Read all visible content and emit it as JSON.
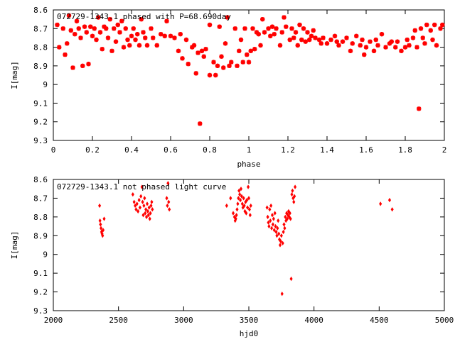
{
  "chart_data": [
    {
      "type": "scatter",
      "title": "072729-1343.1 phased with P=68.690day",
      "xlabel": "phase",
      "ylabel": "I[mag]",
      "xlim": [
        0,
        2
      ],
      "ylim": [
        9.3,
        8.6
      ],
      "y_inverted": true,
      "grid": false,
      "marker_color": "#ff0000",
      "marker": "star",
      "x_ticks": [
        {
          "v": 0,
          "label": "0"
        },
        {
          "v": 0.2,
          "label": "0.2"
        },
        {
          "v": 0.4,
          "label": "0.4"
        },
        {
          "v": 0.6,
          "label": "0.6"
        },
        {
          "v": 0.8,
          "label": "0.8"
        },
        {
          "v": 1,
          "label": "1"
        },
        {
          "v": 1.2,
          "label": "1.2"
        },
        {
          "v": 1.4,
          "label": "1.4"
        },
        {
          "v": 1.6,
          "label": "1.6"
        },
        {
          "v": 1.8,
          "label": "1.8"
        },
        {
          "v": 2,
          "label": "2"
        }
      ],
      "y_ticks": [
        {
          "v": 8.6,
          "label": "8.6"
        },
        {
          "v": 8.7,
          "label": "8.7"
        },
        {
          "v": 8.8,
          "label": "8.8"
        },
        {
          "v": 8.9,
          "label": "8.9"
        },
        {
          "v": 9.0,
          "label": "9"
        },
        {
          "v": 9.1,
          "label": "9.1"
        },
        {
          "v": 9.2,
          "label": "9.2"
        },
        {
          "v": 9.3,
          "label": "9.3"
        }
      ],
      "points": [
        [
          0.02,
          8.68
        ],
        [
          0.03,
          8.8
        ],
        [
          0.05,
          8.7
        ],
        [
          0.06,
          8.84
        ],
        [
          0.07,
          8.78
        ],
        [
          0.08,
          8.63
        ],
        [
          0.09,
          8.71
        ],
        [
          0.1,
          8.91
        ],
        [
          0.11,
          8.73
        ],
        [
          0.12,
          8.66
        ],
        [
          0.13,
          8.7
        ],
        [
          0.14,
          8.75
        ],
        [
          0.15,
          8.9
        ],
        [
          0.16,
          8.69
        ],
        [
          0.17,
          8.72
        ],
        [
          0.18,
          8.89
        ],
        [
          0.19,
          8.69
        ],
        [
          0.2,
          8.74
        ],
        [
          0.21,
          8.7
        ],
        [
          0.22,
          8.76
        ],
        [
          0.23,
          8.64
        ],
        [
          0.24,
          8.72
        ],
        [
          0.25,
          8.81
        ],
        [
          0.26,
          8.69
        ],
        [
          0.27,
          8.7
        ],
        [
          0.28,
          8.75
        ],
        [
          0.29,
          8.65
        ],
        [
          0.3,
          8.82
        ],
        [
          0.31,
          8.7
        ],
        [
          0.32,
          8.77
        ],
        [
          0.33,
          8.68
        ],
        [
          0.34,
          8.72
        ],
        [
          0.35,
          8.66
        ],
        [
          0.36,
          8.8
        ],
        [
          0.37,
          8.7
        ],
        [
          0.38,
          8.76
        ],
        [
          0.39,
          8.79
        ],
        [
          0.4,
          8.74
        ],
        [
          0.41,
          8.7
        ],
        [
          0.42,
          8.76
        ],
        [
          0.43,
          8.73
        ],
        [
          0.44,
          8.79
        ],
        [
          0.45,
          8.65
        ],
        [
          0.46,
          8.72
        ],
        [
          0.47,
          8.75
        ],
        [
          0.48,
          8.79
        ],
        [
          0.5,
          8.7
        ],
        [
          0.51,
          8.75
        ],
        [
          0.53,
          8.79
        ],
        [
          0.55,
          8.73
        ],
        [
          0.57,
          8.74
        ],
        [
          0.58,
          8.66
        ],
        [
          0.6,
          8.74
        ],
        [
          0.62,
          8.75
        ],
        [
          0.64,
          8.82
        ],
        [
          0.65,
          8.73
        ],
        [
          0.66,
          8.86
        ],
        [
          0.68,
          8.76
        ],
        [
          0.69,
          8.89
        ],
        [
          0.71,
          8.8
        ],
        [
          0.72,
          8.79
        ],
        [
          0.73,
          8.94
        ],
        [
          0.74,
          8.83
        ],
        [
          0.75,
          9.21
        ],
        [
          0.76,
          8.82
        ],
        [
          0.77,
          8.85
        ],
        [
          0.78,
          8.81
        ],
        [
          0.8,
          8.95
        ],
        [
          0.8,
          8.68
        ],
        [
          0.82,
          8.88
        ],
        [
          0.83,
          8.95
        ],
        [
          0.84,
          8.9
        ],
        [
          0.85,
          8.69
        ],
        [
          0.86,
          8.85
        ],
        [
          0.87,
          8.91
        ],
        [
          0.88,
          8.78
        ],
        [
          0.89,
          8.64
        ],
        [
          0.9,
          8.9
        ],
        [
          0.91,
          8.88
        ],
        [
          0.93,
          8.7
        ],
        [
          0.94,
          8.9
        ],
        [
          0.95,
          8.82
        ],
        [
          0.96,
          8.76
        ],
        [
          0.97,
          8.88
        ],
        [
          0.98,
          8.7
        ],
        [
          0.99,
          8.84
        ],
        [
          1.0,
          8.88
        ],
        [
          1.01,
          8.82
        ],
        [
          1.02,
          8.7
        ],
        [
          1.03,
          8.81
        ],
        [
          1.04,
          8.72
        ],
        [
          1.05,
          8.73
        ],
        [
          1.06,
          8.79
        ],
        [
          1.07,
          8.65
        ],
        [
          1.08,
          8.72
        ],
        [
          1.1,
          8.7
        ],
        [
          1.11,
          8.74
        ],
        [
          1.12,
          8.69
        ],
        [
          1.13,
          8.73
        ],
        [
          1.14,
          8.7
        ],
        [
          1.16,
          8.79
        ],
        [
          1.17,
          8.72
        ],
        [
          1.18,
          8.64
        ],
        [
          1.19,
          8.69
        ],
        [
          1.21,
          8.76
        ],
        [
          1.22,
          8.7
        ],
        [
          1.23,
          8.75
        ],
        [
          1.24,
          8.72
        ],
        [
          1.25,
          8.79
        ],
        [
          1.26,
          8.68
        ],
        [
          1.27,
          8.76
        ],
        [
          1.28,
          8.7
        ],
        [
          1.29,
          8.77
        ],
        [
          1.3,
          8.72
        ],
        [
          1.31,
          8.76
        ],
        [
          1.32,
          8.74
        ],
        [
          1.33,
          8.71
        ],
        [
          1.34,
          8.75
        ],
        [
          1.36,
          8.76
        ],
        [
          1.37,
          8.78
        ],
        [
          1.38,
          8.75
        ],
        [
          1.4,
          8.78
        ],
        [
          1.42,
          8.76
        ],
        [
          1.44,
          8.74
        ],
        [
          1.45,
          8.77
        ],
        [
          1.46,
          8.79
        ],
        [
          1.48,
          8.77
        ],
        [
          1.5,
          8.75
        ],
        [
          1.52,
          8.82
        ],
        [
          1.53,
          8.78
        ],
        [
          1.55,
          8.74
        ],
        [
          1.57,
          8.79
        ],
        [
          1.58,
          8.76
        ],
        [
          1.59,
          8.84
        ],
        [
          1.6,
          8.8
        ],
        [
          1.62,
          8.77
        ],
        [
          1.64,
          8.82
        ],
        [
          1.65,
          8.76
        ],
        [
          1.66,
          8.79
        ],
        [
          1.68,
          8.73
        ],
        [
          1.7,
          8.8
        ],
        [
          1.72,
          8.78
        ],
        [
          1.73,
          8.77
        ],
        [
          1.75,
          8.8
        ],
        [
          1.76,
          8.77
        ],
        [
          1.78,
          8.82
        ],
        [
          1.8,
          8.8
        ],
        [
          1.81,
          8.76
        ],
        [
          1.82,
          8.79
        ],
        [
          1.84,
          8.75
        ],
        [
          1.85,
          8.71
        ],
        [
          1.86,
          8.8
        ],
        [
          1.87,
          9.13
        ],
        [
          1.88,
          8.7
        ],
        [
          1.89,
          8.75
        ],
        [
          1.9,
          8.78
        ],
        [
          1.91,
          8.68
        ],
        [
          1.93,
          8.71
        ],
        [
          1.94,
          8.76
        ],
        [
          1.95,
          8.68
        ],
        [
          1.96,
          8.79
        ],
        [
          1.98,
          8.7
        ],
        [
          1.99,
          8.68
        ]
      ]
    },
    {
      "type": "scatter",
      "title": "072729-1343.1 not phased light curve",
      "xlabel": "hjd0",
      "ylabel": "I[mag]",
      "xlim": [
        2000,
        5000
      ],
      "ylim": [
        9.3,
        8.6
      ],
      "y_inverted": true,
      "grid": false,
      "marker_color": "#ff0000",
      "marker": "diamond",
      "x_ticks": [
        {
          "v": 2000,
          "label": "2000"
        },
        {
          "v": 2500,
          "label": "2500"
        },
        {
          "v": 3000,
          "label": "3000"
        },
        {
          "v": 3500,
          "label": "3500"
        },
        {
          "v": 4000,
          "label": "4000"
        },
        {
          "v": 4500,
          "label": "4500"
        },
        {
          "v": 5000,
          "label": "5000"
        }
      ],
      "y_ticks": [
        {
          "v": 8.6,
          "label": "8.6"
        },
        {
          "v": 8.7,
          "label": "8.7"
        },
        {
          "v": 8.8,
          "label": "8.8"
        },
        {
          "v": 8.9,
          "label": "8.9"
        },
        {
          "v": 9.0,
          "label": "9"
        },
        {
          "v": 9.1,
          "label": "9.1"
        },
        {
          "v": 9.2,
          "label": "9.2"
        },
        {
          "v": 9.3,
          "label": "9.3"
        }
      ],
      "points": [
        [
          2355,
          8.74
        ],
        [
          2358,
          8.82
        ],
        [
          2362,
          8.84
        ],
        [
          2366,
          8.86
        ],
        [
          2370,
          8.88
        ],
        [
          2374,
          8.89
        ],
        [
          2378,
          8.9
        ],
        [
          2382,
          8.87
        ],
        [
          2390,
          8.81
        ],
        [
          2610,
          8.68
        ],
        [
          2620,
          8.72
        ],
        [
          2628,
          8.74
        ],
        [
          2635,
          8.76
        ],
        [
          2642,
          8.73
        ],
        [
          2650,
          8.77
        ],
        [
          2658,
          8.71
        ],
        [
          2665,
          8.75
        ],
        [
          2672,
          8.69
        ],
        [
          2680,
          8.64
        ],
        [
          2685,
          8.72
        ],
        [
          2690,
          8.79
        ],
        [
          2695,
          8.74
        ],
        [
          2700,
          8.7
        ],
        [
          2705,
          8.78
        ],
        [
          2710,
          8.76
        ],
        [
          2715,
          8.8
        ],
        [
          2720,
          8.73
        ],
        [
          2725,
          8.77
        ],
        [
          2730,
          8.79
        ],
        [
          2735,
          8.75
        ],
        [
          2740,
          8.81
        ],
        [
          2745,
          8.78
        ],
        [
          2750,
          8.74
        ],
        [
          2755,
          8.72
        ],
        [
          2760,
          8.76
        ],
        [
          2870,
          8.7
        ],
        [
          2875,
          8.74
        ],
        [
          2880,
          8.62
        ],
        [
          2885,
          8.72
        ],
        [
          2890,
          8.76
        ],
        [
          3330,
          8.74
        ],
        [
          3360,
          8.7
        ],
        [
          3380,
          8.78
        ],
        [
          3390,
          8.8
        ],
        [
          3395,
          8.82
        ],
        [
          3400,
          8.81
        ],
        [
          3405,
          8.79
        ],
        [
          3410,
          8.76
        ],
        [
          3415,
          8.73
        ],
        [
          3420,
          8.7
        ],
        [
          3425,
          8.66
        ],
        [
          3430,
          8.68
        ],
        [
          3435,
          8.71
        ],
        [
          3440,
          8.65
        ],
        [
          3445,
          8.69
        ],
        [
          3450,
          8.73
        ],
        [
          3455,
          8.75
        ],
        [
          3460,
          8.7
        ],
        [
          3465,
          8.74
        ],
        [
          3470,
          8.77
        ],
        [
          3475,
          8.72
        ],
        [
          3480,
          8.78
        ],
        [
          3485,
          8.71
        ],
        [
          3490,
          8.75
        ],
        [
          3495,
          8.64
        ],
        [
          3500,
          8.7
        ],
        [
          3505,
          8.76
        ],
        [
          3510,
          8.79
        ],
        [
          3515,
          8.74
        ],
        [
          3640,
          8.75
        ],
        [
          3645,
          8.8
        ],
        [
          3650,
          8.83
        ],
        [
          3655,
          8.85
        ],
        [
          3660,
          8.76
        ],
        [
          3665,
          8.82
        ],
        [
          3670,
          8.74
        ],
        [
          3675,
          8.86
        ],
        [
          3680,
          8.79
        ],
        [
          3685,
          8.84
        ],
        [
          3690,
          8.81
        ],
        [
          3695,
          8.87
        ],
        [
          3700,
          8.78
        ],
        [
          3705,
          8.85
        ],
        [
          3710,
          8.88
        ],
        [
          3715,
          8.9
        ],
        [
          3720,
          8.86
        ],
        [
          3725,
          8.82
        ],
        [
          3730,
          8.89
        ],
        [
          3735,
          8.92
        ],
        [
          3740,
          8.95
        ],
        [
          3745,
          8.93
        ],
        [
          3750,
          8.9
        ],
        [
          3755,
          9.21
        ],
        [
          3760,
          8.94
        ],
        [
          3765,
          8.88
        ],
        [
          3770,
          8.84
        ],
        [
          3775,
          8.86
        ],
        [
          3780,
          8.8
        ],
        [
          3785,
          8.82
        ],
        [
          3790,
          8.78
        ],
        [
          3795,
          8.81
        ],
        [
          3800,
          8.79
        ],
        [
          3805,
          8.77
        ],
        [
          3810,
          8.8
        ],
        [
          3815,
          8.78
        ],
        [
          3820,
          8.81
        ],
        [
          3825,
          9.13
        ],
        [
          3830,
          8.68
        ],
        [
          3835,
          8.66
        ],
        [
          3840,
          8.7
        ],
        [
          3845,
          8.72
        ],
        [
          3850,
          8.69
        ],
        [
          3855,
          8.64
        ],
        [
          4510,
          8.73
        ],
        [
          4580,
          8.71
        ],
        [
          4600,
          8.76
        ]
      ]
    }
  ]
}
